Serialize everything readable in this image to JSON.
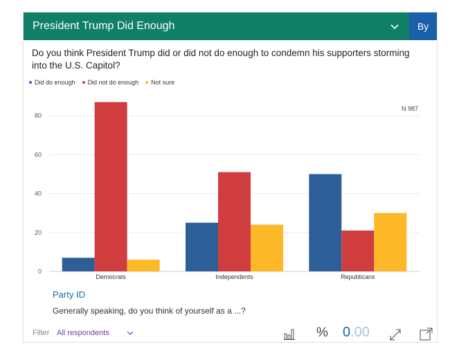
{
  "header": {
    "title": "President Trump Did Enough",
    "by_label": "By"
  },
  "question": "Do you think President Trump did or did not do enough to condemn his supporters storming into the U.S. Capitol?",
  "legend": [
    {
      "label": "Did do enough",
      "color": "#2e5e98"
    },
    {
      "label": "Did not do enough",
      "color": "#cf3d3f"
    },
    {
      "label": "Not sure",
      "color": "#fdb827"
    }
  ],
  "chart_data": {
    "type": "bar",
    "sample_label": "N 987",
    "categories": [
      "Democrats",
      "Independents",
      "Republicans"
    ],
    "series": [
      {
        "name": "Did do enough",
        "color": "#2e5e98",
        "values": [
          7,
          25,
          50
        ]
      },
      {
        "name": "Did not do enough",
        "color": "#cf3d3f",
        "values": [
          87,
          51,
          21
        ]
      },
      {
        "name": "Not sure",
        "color": "#fdb827",
        "values": [
          6,
          24,
          30
        ]
      }
    ],
    "yticks": [
      0,
      20,
      40,
      60,
      80
    ],
    "ylim": [
      0,
      90
    ],
    "grid": true
  },
  "party": {
    "title": "Party ID",
    "question": "Generally speaking, do you think of yourself as a ...?"
  },
  "footer": {
    "filter_label": "Filter",
    "filter_value": "All respondents",
    "percent_label": "%",
    "decimal_whole": "0",
    "decimal_frac": ".00"
  }
}
